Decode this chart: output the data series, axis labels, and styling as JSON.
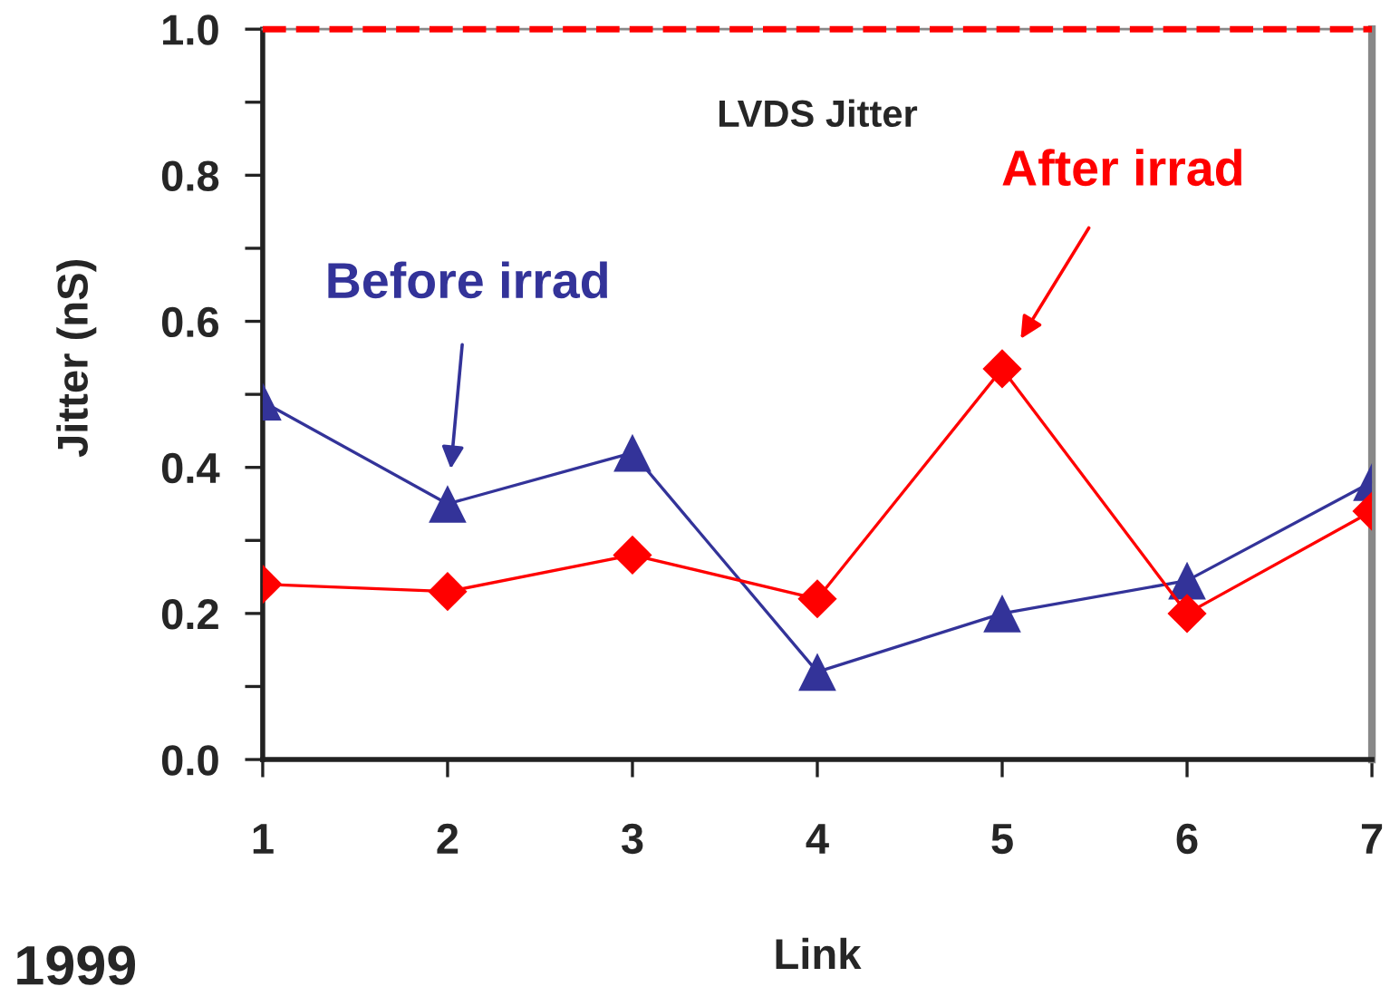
{
  "chart_data": {
    "type": "line",
    "title": "LVDS Jitter",
    "xlabel": "Link",
    "ylabel": "Jitter (nS)",
    "x": [
      1,
      2,
      3,
      4,
      5,
      6,
      7
    ],
    "series": [
      {
        "name": "Before irrad",
        "color": "#333399",
        "marker": "triangle",
        "values": [
          0.49,
          0.35,
          0.42,
          0.12,
          0.2,
          0.245,
          0.38
        ]
      },
      {
        "name": "After irrad",
        "color": "#ff0000",
        "marker": "diamond",
        "values": [
          0.24,
          0.23,
          0.28,
          0.22,
          0.535,
          0.2,
          0.34
        ]
      }
    ],
    "xlim": [
      1,
      7
    ],
    "xticks": [
      1,
      2,
      3,
      4,
      5,
      6,
      7
    ],
    "ylim": [
      0,
      1.0
    ],
    "yticks": [
      {
        "value": 0,
        "label": "0.0"
      },
      {
        "value": 0.1,
        "label": null
      },
      {
        "value": 0.2,
        "label": "0.2"
      },
      {
        "value": 0.3,
        "label": null
      },
      {
        "value": 0.4,
        "label": "0.4"
      },
      {
        "value": 0.5,
        "label": null
      },
      {
        "value": 0.6,
        "label": "0.6"
      },
      {
        "value": 0.7,
        "label": null
      },
      {
        "value": 0.8,
        "label": "0.8"
      },
      {
        "value": 0.9,
        "label": null
      },
      {
        "value": 1.0,
        "label": "1.0"
      }
    ],
    "ref_lines": [
      {
        "axis": "y",
        "value": 1.0,
        "color": "#ff0000",
        "line_style": "dashed"
      }
    ],
    "grid": false,
    "legend": false,
    "annotations": [
      "1999"
    ]
  }
}
